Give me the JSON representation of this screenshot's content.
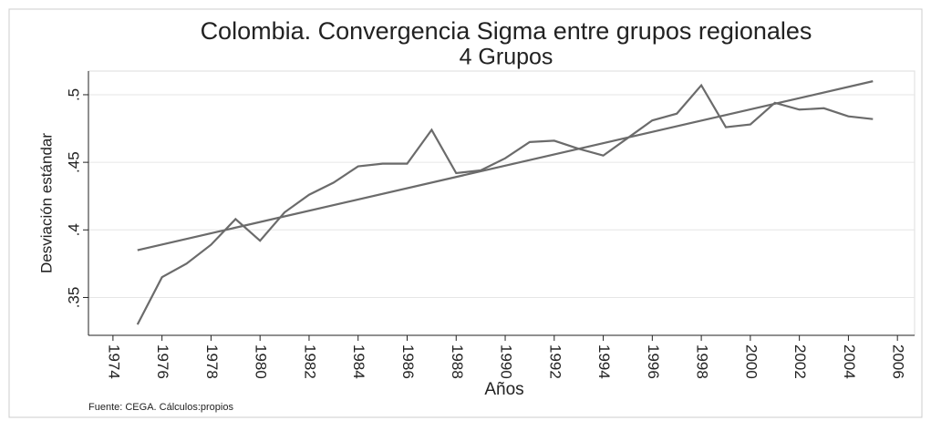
{
  "chart_data": {
    "type": "line",
    "title": "Colombia. Convergencia Sigma entre grupos regionales",
    "subtitle": "4 Grupos",
    "x_label": "Años",
    "y_label": "Desviación estándar",
    "note": "Fuente: CEGA. Cálculos:propios",
    "x": [
      1975,
      1976,
      1977,
      1978,
      1979,
      1980,
      1981,
      1982,
      1983,
      1984,
      1985,
      1986,
      1987,
      1988,
      1989,
      1990,
      1991,
      1992,
      1993,
      1994,
      1995,
      1996,
      1997,
      1998,
      1999,
      2000,
      2001,
      2002,
      2003,
      2004,
      2005
    ],
    "series": [
      {
        "color": "#6b6b6b",
        "values": [
          0.33,
          0.365,
          0.375,
          0.389,
          0.408,
          0.392,
          0.413,
          0.426,
          0.435,
          0.447,
          0.449,
          0.449,
          0.474,
          0.442,
          0.444,
          0.453,
          0.465,
          0.466,
          0.46,
          0.455,
          0.468,
          0.481,
          0.486,
          0.507,
          0.476,
          0.478,
          0.494,
          0.489,
          0.49,
          0.484,
          0.482
        ]
      }
    ],
    "trend": {
      "color": "#6b6b6b",
      "x": [
        1975,
        2005
      ],
      "values": [
        0.385,
        0.51
      ]
    },
    "xlim": [
      1973,
      2006.7
    ],
    "ylim": [
      0.322,
      0.5175
    ],
    "xticks": [
      1974,
      1976,
      1978,
      1980,
      1982,
      1984,
      1986,
      1988,
      1990,
      1992,
      1994,
      1996,
      1998,
      2000,
      2002,
      2004,
      2006
    ],
    "yticks": [
      {
        "value": 0.35,
        "label": ".35"
      },
      {
        "value": 0.4,
        "label": ".4"
      },
      {
        "value": 0.45,
        "label": ".45"
      },
      {
        "value": 0.5,
        "label": ".5"
      }
    ],
    "grid": true
  }
}
